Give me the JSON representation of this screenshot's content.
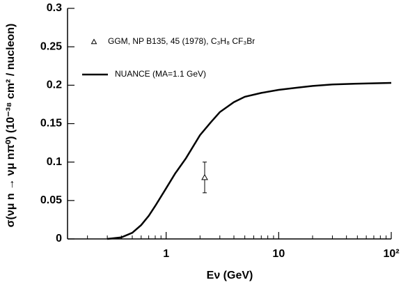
{
  "chart_data": {
    "type": "line",
    "x_label": "Eν (GeV)",
    "y_label": "σ(νμ n → νμ nπ⁰) (10⁻³⁸ cm² / nucleon)",
    "xscale": "log",
    "xlim": [
      0.133,
      100
    ],
    "xticks": [
      1,
      10,
      {
        "value": 100,
        "label": "10²"
      }
    ],
    "xminorticks": [
      0.2,
      0.3,
      0.4,
      0.5,
      0.6,
      0.7,
      0.8,
      0.9,
      2,
      3,
      4,
      5,
      6,
      7,
      8,
      9,
      20,
      30,
      40,
      50,
      60,
      70,
      80,
      90
    ],
    "ylim": [
      0,
      0.3
    ],
    "yticks": [
      0,
      0.05,
      0.1,
      0.15,
      0.2,
      0.25,
      0.3
    ],
    "legend": "top-left",
    "series": [
      {
        "name": "GGM, NP B135, 45 (1978), C₃H₈ CF₃Br",
        "color": "#000000",
        "marker": "triangle-open",
        "x": [
          2.2
        ],
        "values": [
          0.08
        ],
        "errors": [
          0.02
        ]
      },
      {
        "name": "NUANCE (MA=1.1 GeV)",
        "color": "#000000",
        "x": [
          0.3,
          0.4,
          0.5,
          0.6,
          0.7,
          0.8,
          1.0,
          1.2,
          1.5,
          2,
          2.5,
          3,
          4,
          5,
          7,
          10,
          15,
          20,
          30,
          50,
          100
        ],
        "values": [
          0,
          0.002,
          0.008,
          0.018,
          0.03,
          0.043,
          0.066,
          0.085,
          0.105,
          0.135,
          0.152,
          0.165,
          0.178,
          0.185,
          0.19,
          0.194,
          0.197,
          0.199,
          0.201,
          0.202,
          0.203
        ]
      }
    ]
  }
}
